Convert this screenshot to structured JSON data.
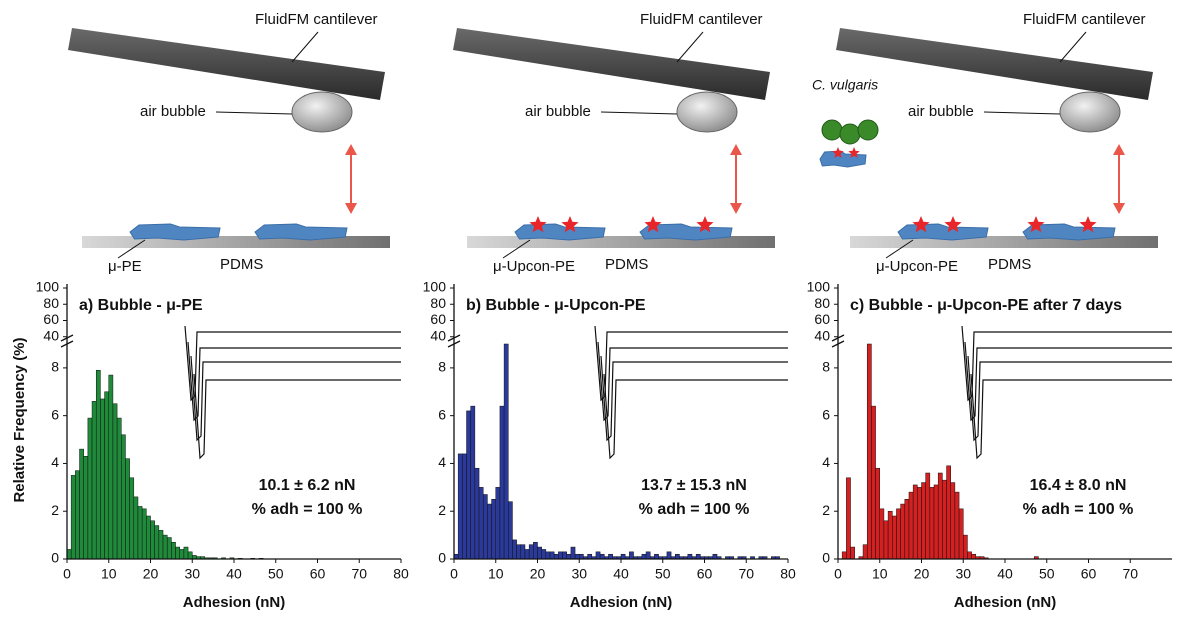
{
  "schematic": [
    {
      "cantilever": "FluidFM cantilever",
      "bubble": "air bubble",
      "particle": "μ-PE",
      "substrate": "PDMS"
    },
    {
      "cantilever": "FluidFM cantilever",
      "bubble": "air bubble",
      "particle": "μ-Upcon-PE",
      "substrate": "PDMS"
    },
    {
      "cantilever": "FluidFM cantilever",
      "bubble": "air bubble",
      "particle": "μ-Upcon-PE",
      "substrate": "PDMS",
      "cells": "C. vulgaris"
    }
  ],
  "chart_data": [
    {
      "type": "histogram",
      "title": "a) Bubble - μ-PE",
      "xlabel": "Adhesion (nN)",
      "ylabel": "Relative Frequency (%)",
      "color": "#1f8a3a",
      "bins": [
        0,
        1,
        2,
        3,
        4,
        5,
        6,
        7,
        8,
        9,
        10,
        11,
        12,
        13,
        14,
        15,
        16,
        17,
        18,
        19,
        20,
        21,
        22,
        23,
        24,
        25,
        26,
        27,
        28,
        29,
        30,
        31,
        32,
        33,
        34,
        35,
        36,
        37,
        38,
        39,
        40,
        41,
        42,
        43,
        44,
        45,
        46,
        47,
        48
      ],
      "values": [
        0.4,
        3.5,
        3.7,
        4.6,
        4.3,
        5.9,
        6.6,
        7.9,
        6.7,
        7.0,
        7.7,
        6.5,
        5.9,
        5.2,
        4.2,
        3.4,
        2.6,
        2.2,
        2.1,
        1.8,
        1.6,
        1.4,
        1.2,
        1.0,
        0.9,
        0.7,
        0.5,
        0.4,
        0.5,
        0.3,
        0.15,
        0.1,
        0.1,
        0.05,
        0.05,
        0.05,
        0,
        0.05,
        0,
        0.05,
        0,
        0.03,
        0,
        0,
        0.03,
        0,
        0.03,
        0
      ],
      "xlim": [
        0,
        80
      ],
      "xticks": [
        0,
        10,
        20,
        30,
        40,
        50,
        60,
        70,
        80
      ],
      "ylim": [
        0,
        9
      ],
      "yticks": [
        0,
        2,
        4,
        6,
        8
      ],
      "ylim_upper": [
        36,
        100
      ],
      "yticks_upper": [
        40,
        60,
        80,
        100
      ],
      "annotations": [
        "10.1 ± 6.2 nN",
        "% adh = 100 %"
      ]
    },
    {
      "type": "histogram",
      "title": "b) Bubble - μ-Upcon-PE",
      "xlabel": "Adhesion (nN)",
      "color": "#2b3a9a",
      "bins": [
        0,
        1,
        2,
        3,
        4,
        5,
        6,
        7,
        8,
        9,
        10,
        11,
        12,
        13,
        14,
        15,
        16,
        17,
        18,
        19,
        20,
        21,
        22,
        23,
        24,
        25,
        26,
        27,
        28,
        29,
        30,
        31,
        32,
        33,
        34,
        35,
        36,
        37,
        38,
        39,
        40,
        41,
        42,
        43,
        44,
        45,
        46,
        47,
        48,
        49,
        50,
        51,
        52,
        53,
        54,
        55,
        56,
        57,
        58,
        59,
        60,
        61,
        62,
        63,
        64,
        65,
        66,
        67,
        68,
        69,
        70,
        71,
        72,
        73,
        74,
        75,
        76,
        77,
        78
      ],
      "values": [
        0.2,
        4.4,
        4.4,
        6.2,
        6.4,
        3.8,
        3.0,
        2.7,
        2.3,
        2.5,
        3.0,
        6.4,
        9.0,
        2.4,
        0.8,
        0.6,
        0.6,
        0.4,
        0.6,
        0.7,
        0.5,
        0.4,
        0.3,
        0.3,
        0.2,
        0.3,
        0.3,
        0.2,
        0.5,
        0.2,
        0.2,
        0.1,
        0.2,
        0.1,
        0.3,
        0.2,
        0.1,
        0.2,
        0.1,
        0.1,
        0.2,
        0.1,
        0.3,
        0.1,
        0.1,
        0.2,
        0.3,
        0.1,
        0.2,
        0.1,
        0.1,
        0.3,
        0.1,
        0.2,
        0.1,
        0.1,
        0.2,
        0.1,
        0.2,
        0.1,
        0.1,
        0.1,
        0.2,
        0.1,
        0,
        0.1,
        0.1,
        0,
        0.1,
        0.1,
        0,
        0.1,
        0,
        0.1,
        0.1,
        0,
        0.1,
        0.1
      ],
      "xlim": [
        0,
        80
      ],
      "xticks": [
        0,
        10,
        20,
        30,
        40,
        50,
        60,
        70,
        80
      ],
      "ylim": [
        0,
        9
      ],
      "yticks": [
        0,
        2,
        4,
        6,
        8
      ],
      "ylim_upper": [
        36,
        100
      ],
      "yticks_upper": [
        40,
        60,
        80,
        100
      ],
      "annotations": [
        "13.7 ± 15.3 nN",
        "% adh = 100 %"
      ]
    },
    {
      "type": "histogram",
      "title": "c) Bubble - μ-Upcon-PE after 7 days",
      "xlabel": "Adhesion (nN)",
      "color": "#d42020",
      "bins": [
        0,
        1,
        2,
        3,
        4,
        5,
        6,
        7,
        8,
        9,
        10,
        11,
        12,
        13,
        14,
        15,
        16,
        17,
        18,
        19,
        20,
        21,
        22,
        23,
        24,
        25,
        26,
        27,
        28,
        29,
        30,
        31,
        32,
        33,
        34,
        35,
        36,
        37,
        38,
        39,
        40,
        41,
        42,
        43,
        44,
        45,
        46,
        47,
        48
      ],
      "values": [
        0,
        0.3,
        3.4,
        0.5,
        0,
        0.1,
        0.6,
        9.0,
        6.4,
        3.8,
        2.1,
        1.6,
        2.0,
        1.8,
        2.1,
        2.3,
        2.5,
        2.8,
        3.1,
        3.0,
        3.2,
        3.6,
        3.0,
        3.1,
        3.6,
        3.3,
        3.9,
        3.2,
        2.8,
        2.1,
        1.0,
        0.3,
        0.2,
        0.1,
        0.1,
        0.05,
        0,
        0,
        0,
        0,
        0,
        0,
        0,
        0,
        0,
        0,
        0,
        0.1
      ],
      "xlim": [
        0,
        80
      ],
      "xticks": [
        0,
        10,
        20,
        30,
        40,
        50,
        60,
        70
      ],
      "ylim": [
        0,
        9
      ],
      "yticks": [
        0,
        2,
        4,
        6,
        8
      ],
      "ylim_upper": [
        36,
        100
      ],
      "yticks_upper": [
        40,
        60,
        80,
        100
      ],
      "annotations": [
        "16.4 ± 8.0 nN",
        "% adh = 100 %"
      ]
    }
  ]
}
